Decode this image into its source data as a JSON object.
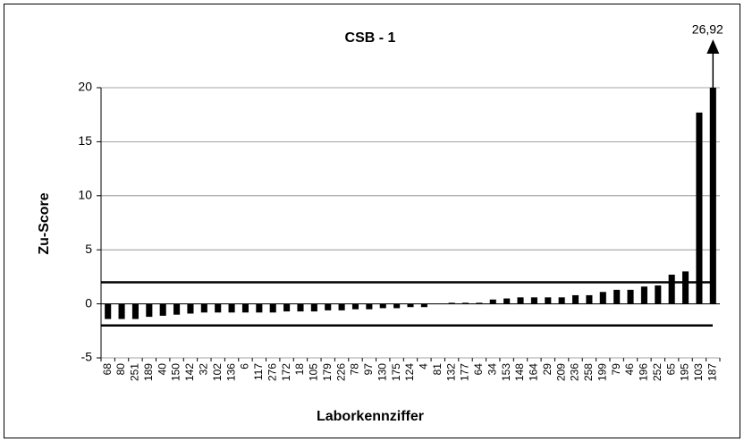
{
  "chart_data": {
    "type": "bar",
    "title": "CSB - 1",
    "xlabel": "Laborkennziffer",
    "ylabel": "Zu-Score",
    "categories": [
      "68",
      "80",
      "251",
      "189",
      "40",
      "150",
      "142",
      "32",
      "102",
      "136",
      "6",
      "117",
      "276",
      "172",
      "18",
      "105",
      "179",
      "226",
      "78",
      "97",
      "130",
      "175",
      "124",
      "4",
      "81",
      "132",
      "177",
      "64",
      "34",
      "153",
      "148",
      "164",
      "29",
      "209",
      "236",
      "258",
      "199",
      "79",
      "46",
      "196",
      "252",
      "65",
      "195",
      "103",
      "187"
    ],
    "values": [
      -1.4,
      -1.4,
      -1.4,
      -1.2,
      -1.1,
      -1.0,
      -0.9,
      -0.8,
      -0.8,
      -0.8,
      -0.8,
      -0.8,
      -0.8,
      -0.7,
      -0.7,
      -0.7,
      -0.6,
      -0.6,
      -0.5,
      -0.5,
      -0.4,
      -0.4,
      -0.3,
      -0.3,
      0,
      0.1,
      0.1,
      0.1,
      0.4,
      0.5,
      0.6,
      0.6,
      0.6,
      0.6,
      0.8,
      0.8,
      1.1,
      1.3,
      1.3,
      1.6,
      1.7,
      2.7,
      3.0,
      17.7,
      26.92
    ],
    "value_labels": [
      null,
      null,
      null,
      null,
      null,
      null,
      null,
      null,
      null,
      null,
      null,
      null,
      null,
      null,
      null,
      null,
      null,
      null,
      null,
      null,
      null,
      null,
      null,
      null,
      null,
      null,
      null,
      null,
      null,
      null,
      null,
      null,
      null,
      null,
      null,
      null,
      null,
      null,
      null,
      null,
      null,
      null,
      null,
      null,
      "26,92"
    ],
    "color": "#000000",
    "ylim": [
      -5,
      20
    ],
    "yticks": [
      -5,
      0,
      5,
      10,
      15,
      20
    ],
    "grid": true,
    "reference_lines": [
      2,
      -2
    ]
  }
}
